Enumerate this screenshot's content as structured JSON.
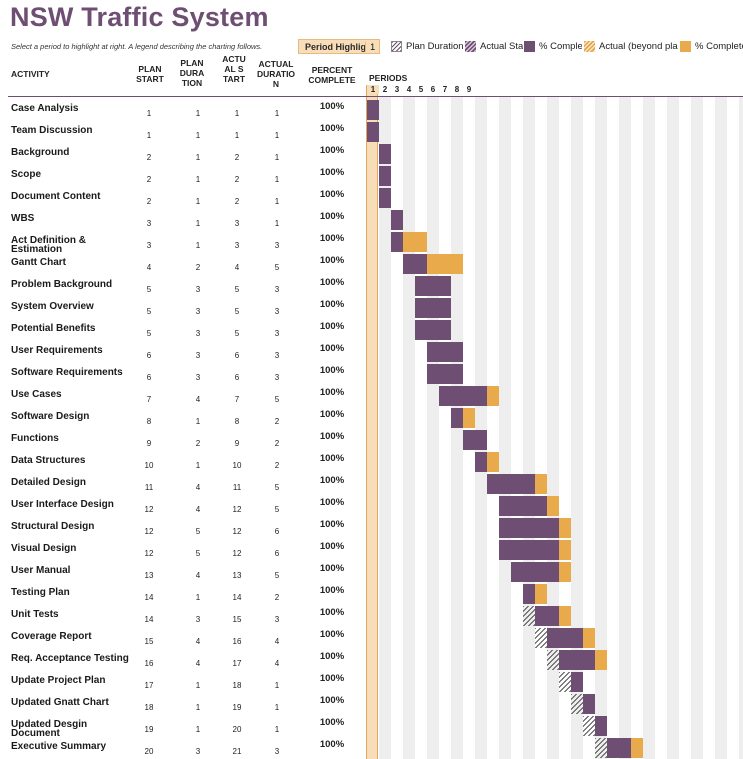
{
  "title": "NSW Traffic System",
  "subtitle": "Select a period to highlight at right.  A legend describing the charting follows.",
  "period_highlight": {
    "label": "Period Highlight:",
    "value": "1"
  },
  "legend": [
    {
      "icon": "plan-duration-icon",
      "label": "Plan Duration"
    },
    {
      "icon": "actual-start-icon",
      "label": "Actual Start"
    },
    {
      "icon": "percent-complete-icon",
      "label": "% Complete"
    },
    {
      "icon": "actual-beyond-plan-icon",
      "label": "Actual (beyond plan)"
    },
    {
      "icon": "percent-complete-beyond-icon",
      "label": "% Complete (beyond plan)"
    }
  ],
  "columns": {
    "activity": "ACTIVITY",
    "plan_start": "PLAN START",
    "plan_duration": "PLAN DURATION",
    "actual_start": "ACTUAL START",
    "actual_duration": "ACTUAL DURATION",
    "percent_complete": "PERCENT COMPLETE",
    "periods": "PERIODS"
  },
  "periods": [
    "1",
    "2",
    "3",
    "4",
    "5",
    "6",
    "7",
    "8",
    "9"
  ],
  "highlight_period": 1,
  "colors": {
    "plan": "#6e4e72",
    "beyond": "#e8aa4a",
    "highlight": "#f8ddb9"
  },
  "rows": [
    {
      "activity": "Case Analysis",
      "plan_start": 1,
      "plan_duration": 1,
      "actual_start": 1,
      "actual_duration": 1,
      "percent": "100%"
    },
    {
      "activity": "Team Discussion",
      "plan_start": 1,
      "plan_duration": 1,
      "actual_start": 1,
      "actual_duration": 1,
      "percent": "100%"
    },
    {
      "activity": "Background",
      "plan_start": 2,
      "plan_duration": 1,
      "actual_start": 2,
      "actual_duration": 1,
      "percent": "100%"
    },
    {
      "activity": "Scope",
      "plan_start": 2,
      "plan_duration": 1,
      "actual_start": 2,
      "actual_duration": 1,
      "percent": "100%"
    },
    {
      "activity": "Document Content",
      "plan_start": 2,
      "plan_duration": 1,
      "actual_start": 2,
      "actual_duration": 1,
      "percent": "100%"
    },
    {
      "activity": "WBS",
      "plan_start": 3,
      "plan_duration": 1,
      "actual_start": 3,
      "actual_duration": 1,
      "percent": "100%"
    },
    {
      "activity": "Act Definition & Estimation",
      "plan_start": 3,
      "plan_duration": 1,
      "actual_start": 3,
      "actual_duration": 3,
      "percent": "100%"
    },
    {
      "activity": "Gantt Chart",
      "plan_start": 4,
      "plan_duration": 2,
      "actual_start": 4,
      "actual_duration": 5,
      "percent": "100%"
    },
    {
      "activity": "Problem Background",
      "plan_start": 5,
      "plan_duration": 3,
      "actual_start": 5,
      "actual_duration": 3,
      "percent": "100%"
    },
    {
      "activity": "System Overview",
      "plan_start": 5,
      "plan_duration": 3,
      "actual_start": 5,
      "actual_duration": 3,
      "percent": "100%"
    },
    {
      "activity": "Potential Benefits",
      "plan_start": 5,
      "plan_duration": 3,
      "actual_start": 5,
      "actual_duration": 3,
      "percent": "100%"
    },
    {
      "activity": "User Requirements",
      "plan_start": 6,
      "plan_duration": 3,
      "actual_start": 6,
      "actual_duration": 3,
      "percent": "100%"
    },
    {
      "activity": "Software Requirements",
      "plan_start": 6,
      "plan_duration": 3,
      "actual_start": 6,
      "actual_duration": 3,
      "percent": "100%"
    },
    {
      "activity": "Use Cases",
      "plan_start": 7,
      "plan_duration": 4,
      "actual_start": 7,
      "actual_duration": 5,
      "percent": "100%"
    },
    {
      "activity": "Software Design",
      "plan_start": 8,
      "plan_duration": 1,
      "actual_start": 8,
      "actual_duration": 2,
      "percent": "100%"
    },
    {
      "activity": "Functions",
      "plan_start": 9,
      "plan_duration": 2,
      "actual_start": 9,
      "actual_duration": 2,
      "percent": "100%"
    },
    {
      "activity": "Data Structures",
      "plan_start": 10,
      "plan_duration": 1,
      "actual_start": 10,
      "actual_duration": 2,
      "percent": "100%"
    },
    {
      "activity": "Detailed Design",
      "plan_start": 11,
      "plan_duration": 4,
      "actual_start": 11,
      "actual_duration": 5,
      "percent": "100%"
    },
    {
      "activity": "User Interface Design",
      "plan_start": 12,
      "plan_duration": 4,
      "actual_start": 12,
      "actual_duration": 5,
      "percent": "100%"
    },
    {
      "activity": "Structural Design",
      "plan_start": 12,
      "plan_duration": 5,
      "actual_start": 12,
      "actual_duration": 6,
      "percent": "100%"
    },
    {
      "activity": "Visual Design",
      "plan_start": 12,
      "plan_duration": 5,
      "actual_start": 12,
      "actual_duration": 6,
      "percent": "100%"
    },
    {
      "activity": "User Manual",
      "plan_start": 13,
      "plan_duration": 4,
      "actual_start": 13,
      "actual_duration": 5,
      "percent": "100%"
    },
    {
      "activity": "Testing Plan",
      "plan_start": 14,
      "plan_duration": 1,
      "actual_start": 14,
      "actual_duration": 2,
      "percent": "100%"
    },
    {
      "activity": "Unit Tests",
      "plan_start": 14,
      "plan_duration": 3,
      "actual_start": 15,
      "actual_duration": 3,
      "percent": "100%"
    },
    {
      "activity": "Coverage Report",
      "plan_start": 15,
      "plan_duration": 4,
      "actual_start": 16,
      "actual_duration": 4,
      "percent": "100%"
    },
    {
      "activity": "Req. Acceptance Testing",
      "plan_start": 16,
      "plan_duration": 4,
      "actual_start": 17,
      "actual_duration": 4,
      "percent": "100%"
    },
    {
      "activity": "Update Project Plan",
      "plan_start": 17,
      "plan_duration": 1,
      "actual_start": 18,
      "actual_duration": 1,
      "percent": "100%"
    },
    {
      "activity": "Updated Gnatt Chart",
      "plan_start": 18,
      "plan_duration": 1,
      "actual_start": 19,
      "actual_duration": 1,
      "percent": "100%"
    },
    {
      "activity": "Updated Desgin Document",
      "plan_start": 19,
      "plan_duration": 1,
      "actual_start": 20,
      "actual_duration": 1,
      "percent": "100%"
    },
    {
      "activity": "Executive Summary",
      "plan_start": 20,
      "plan_duration": 3,
      "actual_start": 21,
      "actual_duration": 3,
      "percent": "100%"
    }
  ]
}
